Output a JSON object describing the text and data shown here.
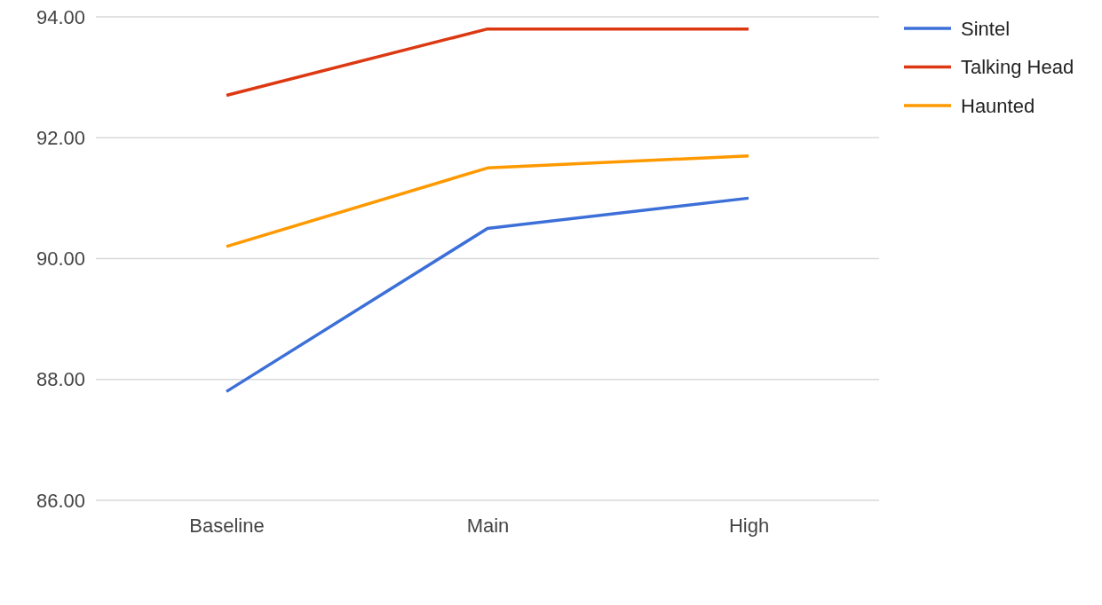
{
  "chart_data": {
    "type": "line",
    "categories": [
      "Baseline",
      "Main",
      "High"
    ],
    "series": [
      {
        "name": "Sintel",
        "color": "#3c6fd8",
        "values": [
          87.8,
          90.5,
          91.0
        ]
      },
      {
        "name": "Talking Head",
        "color": "#dc3912",
        "values": [
          92.7,
          93.8,
          93.8
        ]
      },
      {
        "name": "Haunted",
        "color": "#ff9900",
        "values": [
          90.2,
          91.5,
          91.7
        ]
      }
    ],
    "ylim": [
      86,
      94
    ],
    "yticks": [
      {
        "value": 86,
        "label": "86.00"
      },
      {
        "value": 88,
        "label": "88.00"
      },
      {
        "value": 90,
        "label": "90.00"
      },
      {
        "value": 92,
        "label": "92.00"
      },
      {
        "value": 94,
        "label": "94.00"
      }
    ],
    "grid": "y",
    "legend": "top right",
    "marker": "none",
    "line_style": "solid"
  }
}
